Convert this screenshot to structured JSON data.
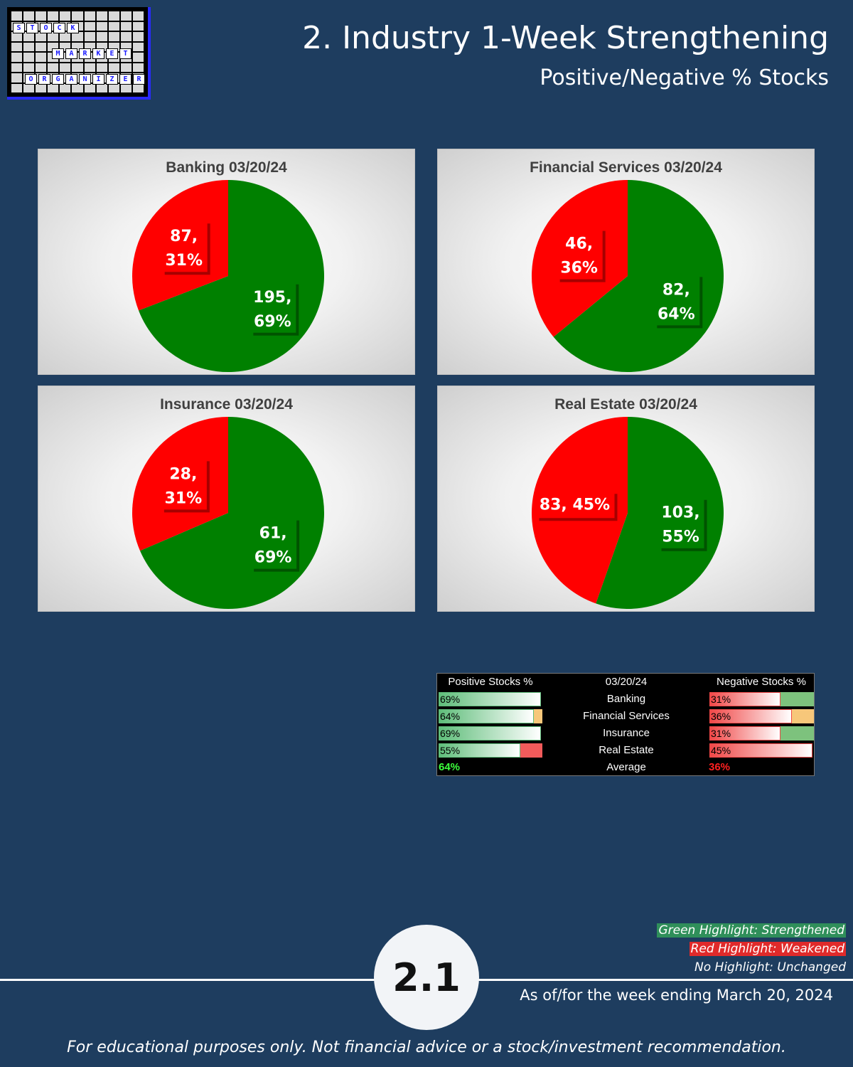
{
  "logo": {
    "row1": [
      "S",
      "T",
      "O",
      "C",
      "K"
    ],
    "row2": [
      "M",
      "A",
      "R",
      "K",
      "E",
      "T"
    ],
    "row3": [
      "O",
      "R",
      "G",
      "A",
      "N",
      "I",
      "Z",
      "E",
      "R"
    ]
  },
  "header": {
    "title": "2. Industry 1-Week Strengthening",
    "subtitle": "Positive/Negative % Stocks"
  },
  "colors": {
    "positive": "#008000",
    "negative": "#ff0000",
    "background": "#1e3d5f"
  },
  "chart_data": [
    {
      "type": "pie",
      "title": "Banking 03/20/24",
      "slices": [
        {
          "value": 195,
          "percent": "69%",
          "label": "195,",
          "label2": "69%",
          "color": "#008000"
        },
        {
          "value": 87,
          "percent": "31%",
          "label": "87,",
          "label2": "31%",
          "color": "#ff0000"
        }
      ]
    },
    {
      "type": "pie",
      "title": "Financial Services 03/20/24",
      "slices": [
        {
          "value": 82,
          "percent": "64%",
          "label": "82,",
          "label2": "64%",
          "color": "#008000"
        },
        {
          "value": 46,
          "percent": "36%",
          "label": "46,",
          "label2": "36%",
          "color": "#ff0000"
        }
      ]
    },
    {
      "type": "pie",
      "title": "Insurance 03/20/24",
      "slices": [
        {
          "value": 61,
          "percent": "69%",
          "label": "61,",
          "label2": "69%",
          "color": "#008000"
        },
        {
          "value": 28,
          "percent": "31%",
          "label": "28,",
          "label2": "31%",
          "color": "#ff0000"
        }
      ]
    },
    {
      "type": "pie",
      "title": "Real Estate 03/20/24",
      "slices": [
        {
          "value": 103,
          "percent": "55%",
          "label": "103,",
          "label2": "55%",
          "color": "#008000"
        },
        {
          "value": 83,
          "percent": "45%",
          "label": "83, 45%",
          "label2": "",
          "color": "#ff0000"
        }
      ]
    },
    {
      "type": "table",
      "headers": [
        "Positive Stocks %",
        "03/20/24",
        "Negative Stocks %"
      ],
      "rows": [
        {
          "industry": "Banking",
          "positive": "69%",
          "negative": "31%",
          "positive_value": 0.69,
          "negative_value": 0.31,
          "pos_change": "none",
          "neg_change": "green"
        },
        {
          "industry": "Financial Services",
          "positive": "64%",
          "negative": "36%",
          "positive_value": 0.64,
          "negative_value": 0.36,
          "pos_change": "orange",
          "neg_change": "orange"
        },
        {
          "industry": "Insurance",
          "positive": "69%",
          "negative": "31%",
          "positive_value": 0.69,
          "negative_value": 0.31,
          "pos_change": "none",
          "neg_change": "green"
        },
        {
          "industry": "Real Estate",
          "positive": "55%",
          "negative": "45%",
          "positive_value": 0.55,
          "negative_value": 0.45,
          "pos_change": "red",
          "neg_change": "none"
        }
      ],
      "average": {
        "label": "Average",
        "positive": "64%",
        "negative": "36%"
      }
    }
  ],
  "highlight_colors": {
    "green": "#7dc27d",
    "orange": "#f7c77a",
    "red": "#f25b5b",
    "none": "transparent"
  },
  "legend": {
    "green": "Green Highlight: Strengthened",
    "red": "Red Highlight: Weakened",
    "none": "No Highlight: Unchanged"
  },
  "footer": {
    "badge": "2.1",
    "as_of": "As of/for the week ending March 20, 2024",
    "disclaimer": "For educational purposes only. Not financial advice or a stock/investment recommendation."
  }
}
